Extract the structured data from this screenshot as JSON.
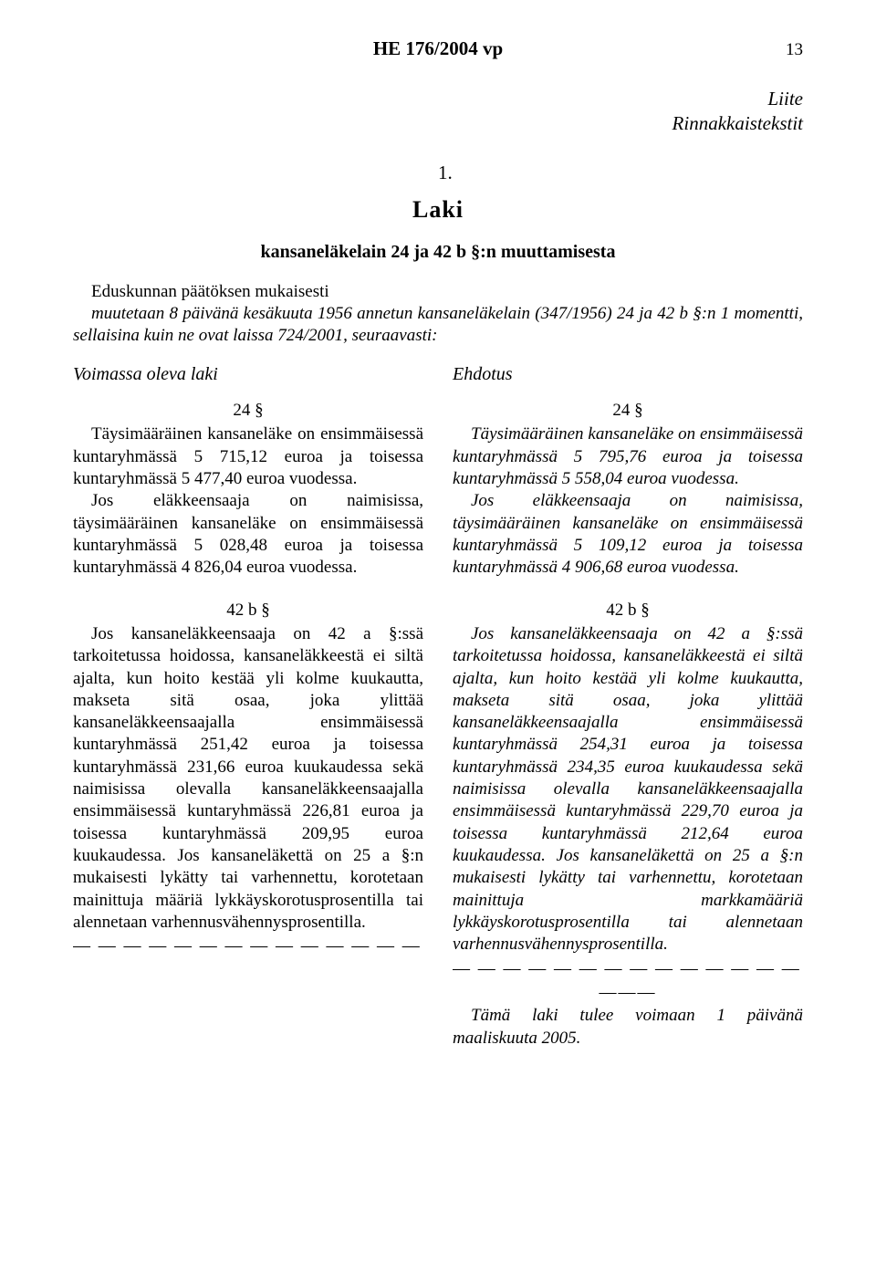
{
  "header": {
    "doc_id": "HE 176/2004 vp",
    "page_number": "13"
  },
  "annex": {
    "liite": "Liite",
    "rinnak": "Rinnakkaistekstit"
  },
  "law": {
    "number": "1.",
    "laki": "Laki",
    "title": "kansaneläkelain 24 ja 42 b §:n muuttamisesta",
    "preamble_line1": "Eduskunnan päätöksen mukaisesti",
    "preamble_line2": "muutetaan 8 päivänä kesäkuuta 1956 annetun kansaneläkelain (347/1956) 24 ja 42 b §:n 1 momentti, sellaisina kuin ne ovat laissa 724/2001, seuraavasti:"
  },
  "columns": {
    "left_header": "Voimassa oleva laki",
    "right_header": "Ehdotus"
  },
  "s24": {
    "num": "24 §",
    "left_p1": "Täysimääräinen kansaneläke on ensimmäisessä kuntaryhmässä 5 715,12 euroa ja toisessa kuntaryhmässä 5 477,40 euroa vuodessa.",
    "left_p2": "Jos eläkkeensaaja on naimisissa, täysimääräinen kansaneläke on ensimmäisessä kuntaryhmässä 5 028,48 euroa ja toisessa kuntaryhmässä 4 826,04 euroa vuodessa.",
    "right_p1": "Täysimääräinen kansaneläke on ensimmäisessä kuntaryhmässä 5 795,76 euroa ja toisessa kuntaryhmässä 5 558,04 euroa vuodessa.",
    "right_p2": "Jos eläkkeensaaja on naimisissa, täysimääräinen kansaneläke on ensimmäisessä kuntaryhmässä 5 109,12 euroa ja toisessa kuntaryhmässä 4 906,68 euroa vuodessa."
  },
  "s42b": {
    "num": "42 b §",
    "left_p1": "Jos kansaneläkkeensaaja on 42 a §:ssä tarkoitetussa hoidossa, kansaneläkkeestä ei siltä ajalta, kun hoito kestää yli kolme kuukautta, makseta sitä osaa, joka ylittää kansaneläkkeensaajalla ensimmäisessä kuntaryhmässä 251,42 euroa ja toisessa kuntaryhmässä 231,66 euroa kuukaudessa sekä naimisissa olevalla kansaneläkkeensaajalla ensimmäisessä kuntaryhmässä 226,81 euroa ja toisessa kuntaryhmässä 209,95 euroa kuukaudessa. Jos kansaneläkettä on 25 a §:n mukaisesti lykätty tai varhennettu, korotetaan mainittuja määriä lykkäyskorotusprosentilla tai alennetaan varhennusvähennysprosentilla.",
    "right_p1": "Jos kansaneläkkeensaaja on 42 a §:ssä tarkoitetussa hoidossa, kansaneläkkeestä ei siltä ajalta, kun hoito kestää yli kolme kuukautta, makseta sitä osaa, joka ylittää kansaneläkkeensaajalla ensimmäisessä kuntaryhmässä 254,31 euroa ja toisessa kuntaryhmässä 234,35 euroa kuukaudessa sekä naimisissa olevalla kansaneläkkeensaajalla ensimmäisessä kuntaryhmässä 229,70 euroa ja toisessa kuntaryhmässä 212,64 euroa kuukaudessa. Jos kansaneläkettä on 25 a §:n mukaisesti lykätty tai varhennettu, korotetaan mainittuja markkamääriä lykkäyskorotusprosentilla tai alennetaan varhennusvähennysprosentilla.",
    "right_tail": "Tämä laki tulee voimaan 1 päivänä maaliskuuta 2005."
  },
  "dashes": {
    "long": "— — — — — — — — — — — — — —",
    "short": "———"
  }
}
